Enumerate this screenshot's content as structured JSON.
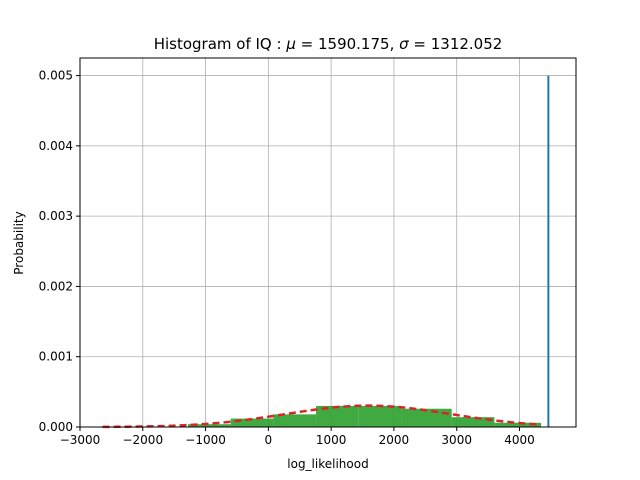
{
  "chart_data": {
    "type": "bar",
    "title": "Histogram of IQ : $\\mu=1590.175$, $\\sigma=1312.052$",
    "title_parts": {
      "prefix": "Histogram of IQ",
      "colon": " : ",
      "mu_symbol": "μ",
      "equals": " = ",
      "mu_value": "1590.175",
      "sep": ",  ",
      "sigma_symbol": "σ",
      "sigma_value": "1312.052"
    },
    "xlabel": "log_likelihood",
    "ylabel": "Probability",
    "xlim": [
      -3000,
      4900
    ],
    "ylim": [
      0,
      0.00525
    ],
    "x_ticks": [
      -3000,
      -2000,
      -1000,
      0,
      1000,
      2000,
      3000,
      4000
    ],
    "x_tick_labels": [
      "−3000",
      "−2000",
      "−1000",
      "0",
      "1000",
      "2000",
      "3000",
      "4000"
    ],
    "y_ticks": [
      0,
      0.001,
      0.002,
      0.003,
      0.004,
      0.005
    ],
    "y_tick_labels": [
      "0.000",
      "0.001",
      "0.002",
      "0.003",
      "0.004",
      "0.005"
    ],
    "grid": true,
    "histogram": {
      "color": "#2ca02c",
      "bins": [
        {
          "x0": -2640,
          "x1": -1960,
          "value": 0.0
        },
        {
          "x0": -1960,
          "x1": -1280,
          "value": 0.0
        },
        {
          "x0": -1280,
          "x1": -600,
          "value": 4e-05
        },
        {
          "x0": -600,
          "x1": 80,
          "value": 0.00012
        },
        {
          "x0": 80,
          "x1": 760,
          "value": 0.00018
        },
        {
          "x0": 760,
          "x1": 1440,
          "value": 0.0003
        },
        {
          "x0": 1440,
          "x1": 2120,
          "value": 0.0003
        },
        {
          "x0": 2120,
          "x1": 2920,
          "value": 0.00026
        },
        {
          "x0": 2920,
          "x1": 3600,
          "value": 0.00014
        },
        {
          "x0": 3600,
          "x1": 4340,
          "value": 6e-05
        }
      ]
    },
    "normal_fit": {
      "mu": 1590.175,
      "sigma": 1312.052,
      "x_range": [
        -2640,
        4340
      ],
      "color": "#d62728",
      "style": "dashed"
    },
    "vline": {
      "x": 4460,
      "y0": 0,
      "y1": 0.005,
      "color": "#1f77b4"
    }
  }
}
